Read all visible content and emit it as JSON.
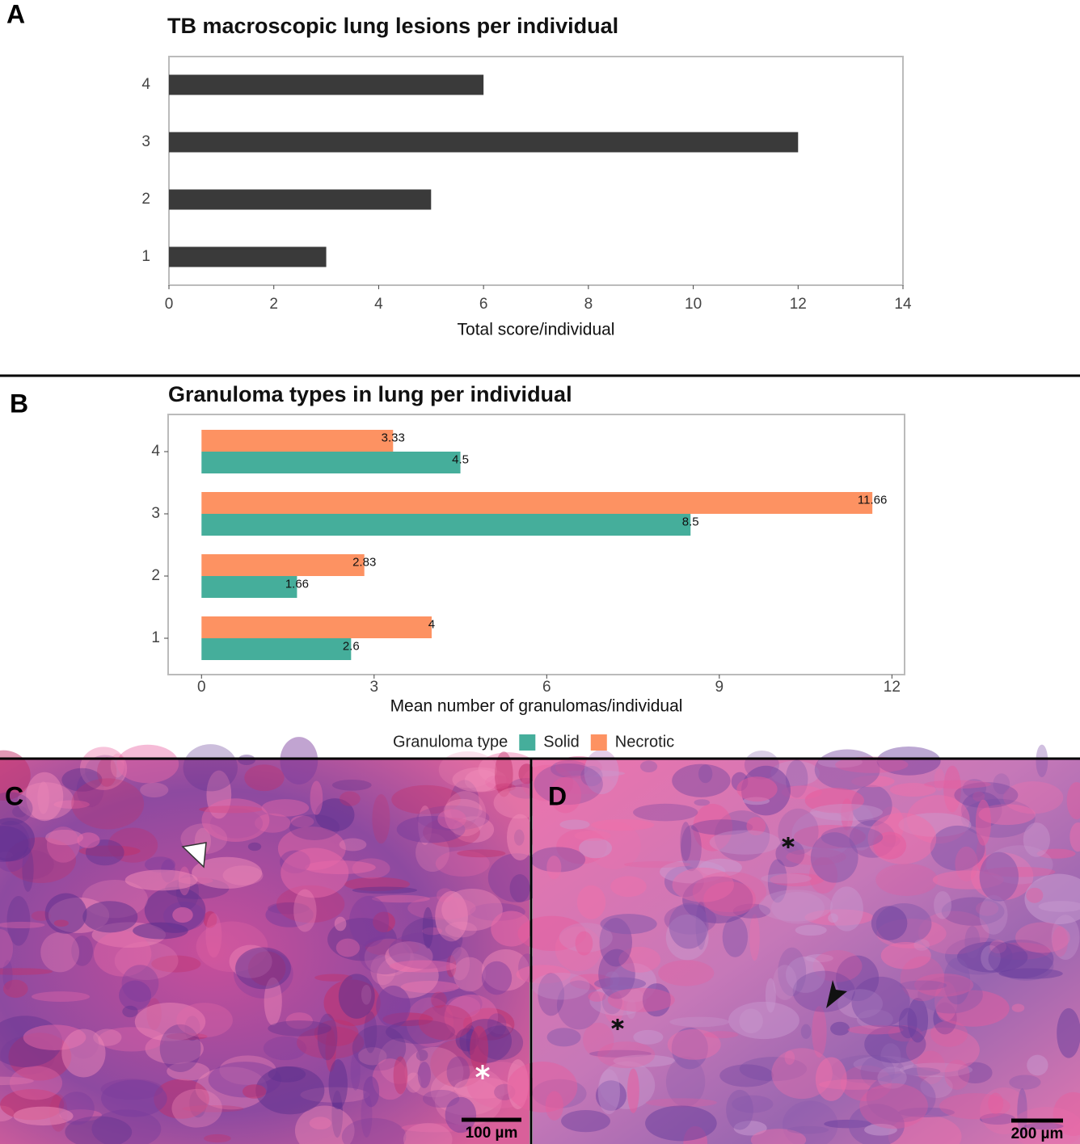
{
  "chart_data": [
    {
      "type": "bar",
      "orientation": "horizontal",
      "title": "TB macroscopic lung lesions per individual",
      "categories": [
        "1",
        "2",
        "3",
        "4"
      ],
      "values": [
        3,
        5,
        12,
        6
      ],
      "color": "#3a3a3a",
      "xlim": [
        0,
        14
      ],
      "xticks": [
        0,
        2,
        4,
        6,
        8,
        10,
        12,
        14
      ],
      "xlabel": "Total score/individual",
      "grid": false
    },
    {
      "type": "bar",
      "orientation": "horizontal",
      "title": "Granuloma types in lung per individual",
      "categories": [
        "1",
        "2",
        "3",
        "4"
      ],
      "series": [
        {
          "name": "Solid",
          "color": "#45ae9b",
          "values": [
            2.6,
            1.66,
            8.5,
            4.5
          ]
        },
        {
          "name": "Necrotic",
          "color": "#fd9262",
          "values": [
            4,
            2.83,
            11.66,
            3.33
          ]
        }
      ],
      "xlim": [
        -0.58,
        12.22
      ],
      "xticks": [
        0,
        3,
        6,
        9,
        12
      ],
      "xlabel": "Mean number of granulomas/individual",
      "legend_title": "Granuloma type",
      "legend": "bottom",
      "grid": false
    }
  ],
  "panel_labels": [
    "A",
    "B",
    "C",
    "D"
  ],
  "micrographs": [
    {
      "scale_bar": "100 µm"
    },
    {
      "scale_bar": "200 µm"
    }
  ]
}
